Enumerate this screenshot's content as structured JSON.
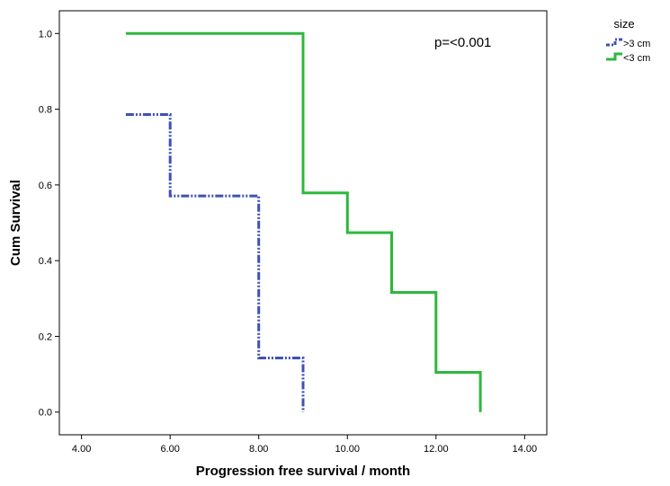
{
  "chart_data": {
    "type": "line",
    "subtype": "step",
    "xlabel": "Progression free survival / month",
    "ylabel": "Cum Survival",
    "xlim": [
      3.5,
      14.5
    ],
    "ylim": [
      -0.06,
      1.06
    ],
    "x_ticks": [
      4,
      6,
      8,
      10,
      12,
      14
    ],
    "x_tick_labels": [
      "4.00",
      "6.00",
      "8.00",
      "10.00",
      "12.00",
      "14.00"
    ],
    "y_ticks": [
      0,
      0.2,
      0.4,
      0.6,
      0.8,
      1.0
    ],
    "y_tick_labels": [
      "0.0",
      "0.2",
      "0.4",
      "0.6",
      "0.8",
      "1.0"
    ],
    "grid": false,
    "annotation": "p=<0.001",
    "legend": {
      "title": "size",
      "placement": "top-right-outside"
    },
    "series": [
      {
        "name": ">3 cm",
        "color": "#3F51B5",
        "line_style": "dash-dot-dot",
        "x": [
          5,
          6,
          6,
          8,
          8,
          9,
          9
        ],
        "y": [
          0.786,
          0.786,
          0.571,
          0.571,
          0.143,
          0.143,
          0.0
        ]
      },
      {
        "name": "<3 cm",
        "color": "#2DB83D",
        "line_style": "solid",
        "x": [
          5,
          9,
          9,
          10,
          10,
          11,
          11,
          12,
          12,
          13,
          13
        ],
        "y": [
          1.0,
          1.0,
          0.579,
          0.579,
          0.474,
          0.474,
          0.316,
          0.316,
          0.105,
          0.105,
          0.0
        ]
      }
    ]
  }
}
